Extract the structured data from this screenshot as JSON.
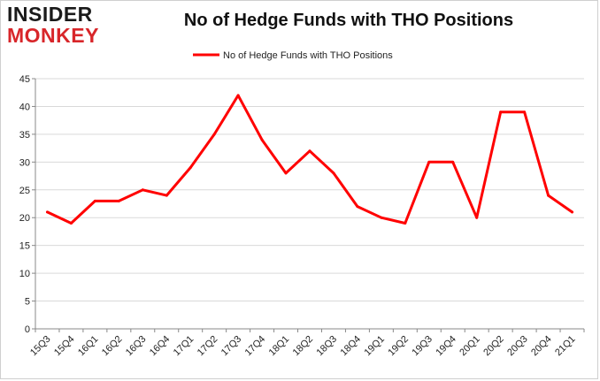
{
  "logo": {
    "line1": "INSIDER",
    "line2": "MONKEY"
  },
  "chart_data": {
    "type": "line",
    "title": "No of Hedge Funds with THO Positions",
    "xlabel": "",
    "ylabel": "",
    "categories": [
      "15Q3",
      "15Q4",
      "16Q1",
      "16Q2",
      "16Q3",
      "16Q4",
      "17Q1",
      "17Q2",
      "17Q3",
      "17Q4",
      "18Q1",
      "18Q2",
      "18Q3",
      "18Q4",
      "19Q1",
      "19Q2",
      "19Q3",
      "19Q4",
      "20Q1",
      "20Q2",
      "20Q3",
      "20Q4",
      "21Q1"
    ],
    "series": [
      {
        "name": "No of Hedge Funds with THO Positions",
        "color": "#ff0000",
        "values": [
          21,
          19,
          23,
          23,
          25,
          24,
          29,
          35,
          42,
          34,
          28,
          32,
          28,
          22,
          20,
          19,
          30,
          30,
          20,
          39,
          39,
          24,
          21
        ]
      }
    ],
    "ylim": [
      0,
      45
    ],
    "yticks": [
      0,
      5,
      10,
      15,
      20,
      25,
      30,
      35,
      40,
      45
    ],
    "grid": true,
    "legend_position": "top-center"
  }
}
